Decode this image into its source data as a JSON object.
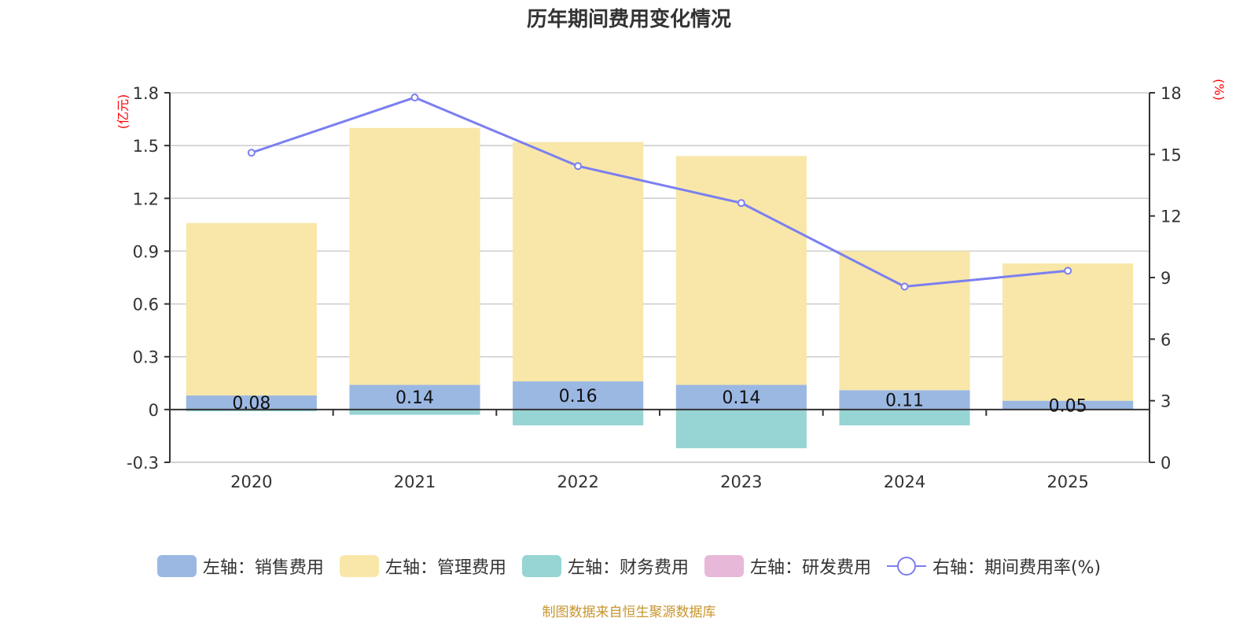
{
  "chart_data": {
    "type": "bar",
    "title": "历年期间费用变化情况",
    "categories": [
      "2020",
      "2021",
      "2022",
      "2023",
      "2024",
      "2025"
    ],
    "left_axis": {
      "unit_label": "(亿元)",
      "ylim": [
        -0.3,
        1.8
      ],
      "ticks": [
        "-0.3",
        "0",
        "0.3",
        "0.6",
        "0.9",
        "1.2",
        "1.5",
        "1.8"
      ]
    },
    "right_axis": {
      "unit_label": "(%)",
      "ylim": [
        0,
        18
      ],
      "ticks": [
        "0",
        "3",
        "6",
        "9",
        "12",
        "15",
        "18"
      ]
    },
    "series": [
      {
        "name": "左轴：销售费用",
        "type": "bar",
        "axis": "left",
        "stack": true,
        "color": "#9bb8e3",
        "values": [
          0.08,
          0.14,
          0.16,
          0.14,
          0.11,
          0.05
        ],
        "labels": [
          "0.08",
          "0.14",
          "0.16",
          "0.14",
          "0.11",
          "0.05"
        ]
      },
      {
        "name": "左轴：管理费用",
        "type": "bar",
        "axis": "left",
        "stack": true,
        "color": "#f8e7a8",
        "values": [
          0.98,
          1.46,
          1.36,
          1.3,
          0.79,
          0.78
        ]
      },
      {
        "name": "左轴：财务费用",
        "type": "bar",
        "axis": "left",
        "stack": true,
        "color": "#97d4d4",
        "values": [
          -0.01,
          -0.03,
          -0.09,
          -0.22,
          -0.09,
          0.0
        ]
      },
      {
        "name": "左轴：研发费用",
        "type": "bar",
        "axis": "left",
        "stack": true,
        "color": "#e8b8d8",
        "values": [
          0,
          0,
          0,
          0,
          0,
          0
        ]
      },
      {
        "name": "右轴：期间费用率(%)",
        "type": "line",
        "axis": "right",
        "color": "#7b7ff0",
        "values": [
          15.08,
          17.77,
          14.43,
          12.63,
          8.56,
          9.33
        ]
      }
    ],
    "grid": true,
    "legend_position": "bottom-center"
  },
  "footer": {
    "source": "制图数据来自恒生聚源数据库"
  }
}
